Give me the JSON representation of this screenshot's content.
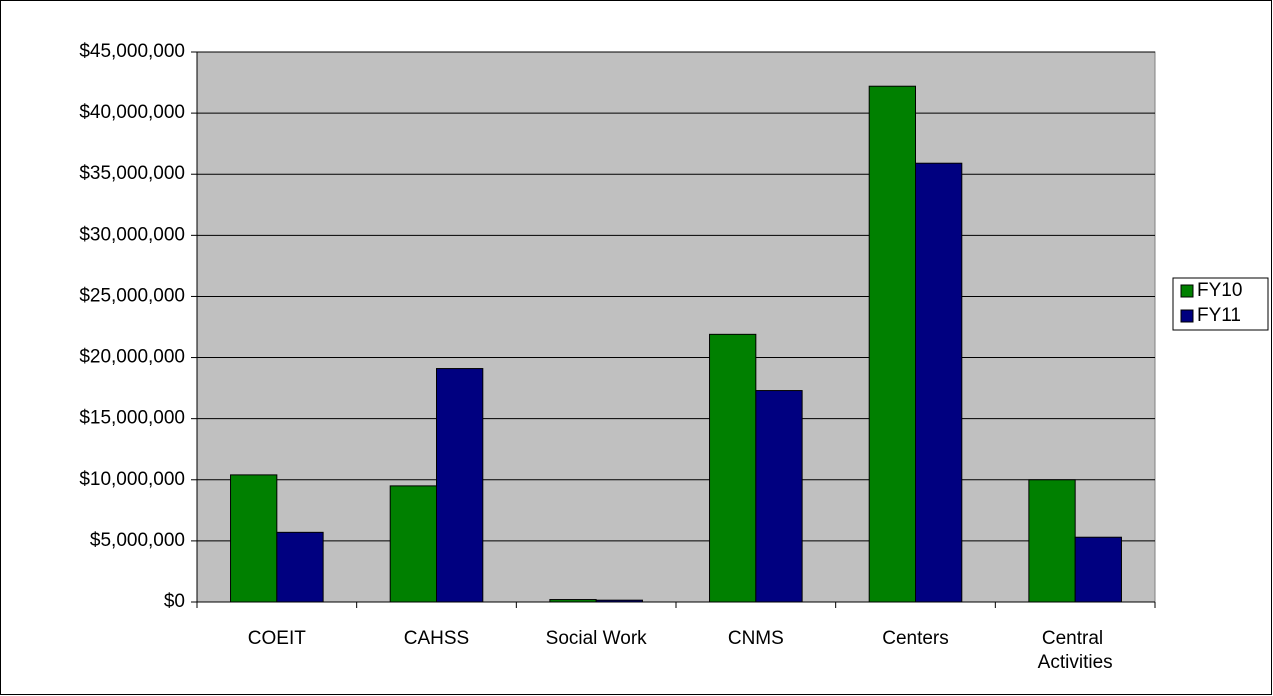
{
  "chart_data": {
    "type": "bar",
    "categories": [
      "COEIT",
      "CAHSS",
      "Social Work",
      "CNMS",
      "Centers",
      "Central Activities"
    ],
    "series": [
      {
        "name": "FY10",
        "color": "#008000",
        "values": [
          10400000,
          9500000,
          200000,
          21900000,
          42200000,
          10000000
        ]
      },
      {
        "name": "FY11",
        "color": "#000080",
        "values": [
          5700000,
          19100000,
          150000,
          17300000,
          35900000,
          5300000
        ]
      }
    ],
    "ylim": [
      0,
      45000000
    ],
    "yticks": [
      {
        "value": 0,
        "label": "$0"
      },
      {
        "value": 5000000,
        "label": "$5,000,000"
      },
      {
        "value": 10000000,
        "label": "$10,000,000"
      },
      {
        "value": 15000000,
        "label": "$15,000,000"
      },
      {
        "value": 20000000,
        "label": "$20,000,000"
      },
      {
        "value": 25000000,
        "label": "$25,000,000"
      },
      {
        "value": 30000000,
        "label": "$30,000,000"
      },
      {
        "value": 35000000,
        "label": "$35,000,000"
      },
      {
        "value": 40000000,
        "label": "$40,000,000"
      },
      {
        "value": 45000000,
        "label": "$45,000,000"
      }
    ],
    "grid": true,
    "legend": "right"
  }
}
